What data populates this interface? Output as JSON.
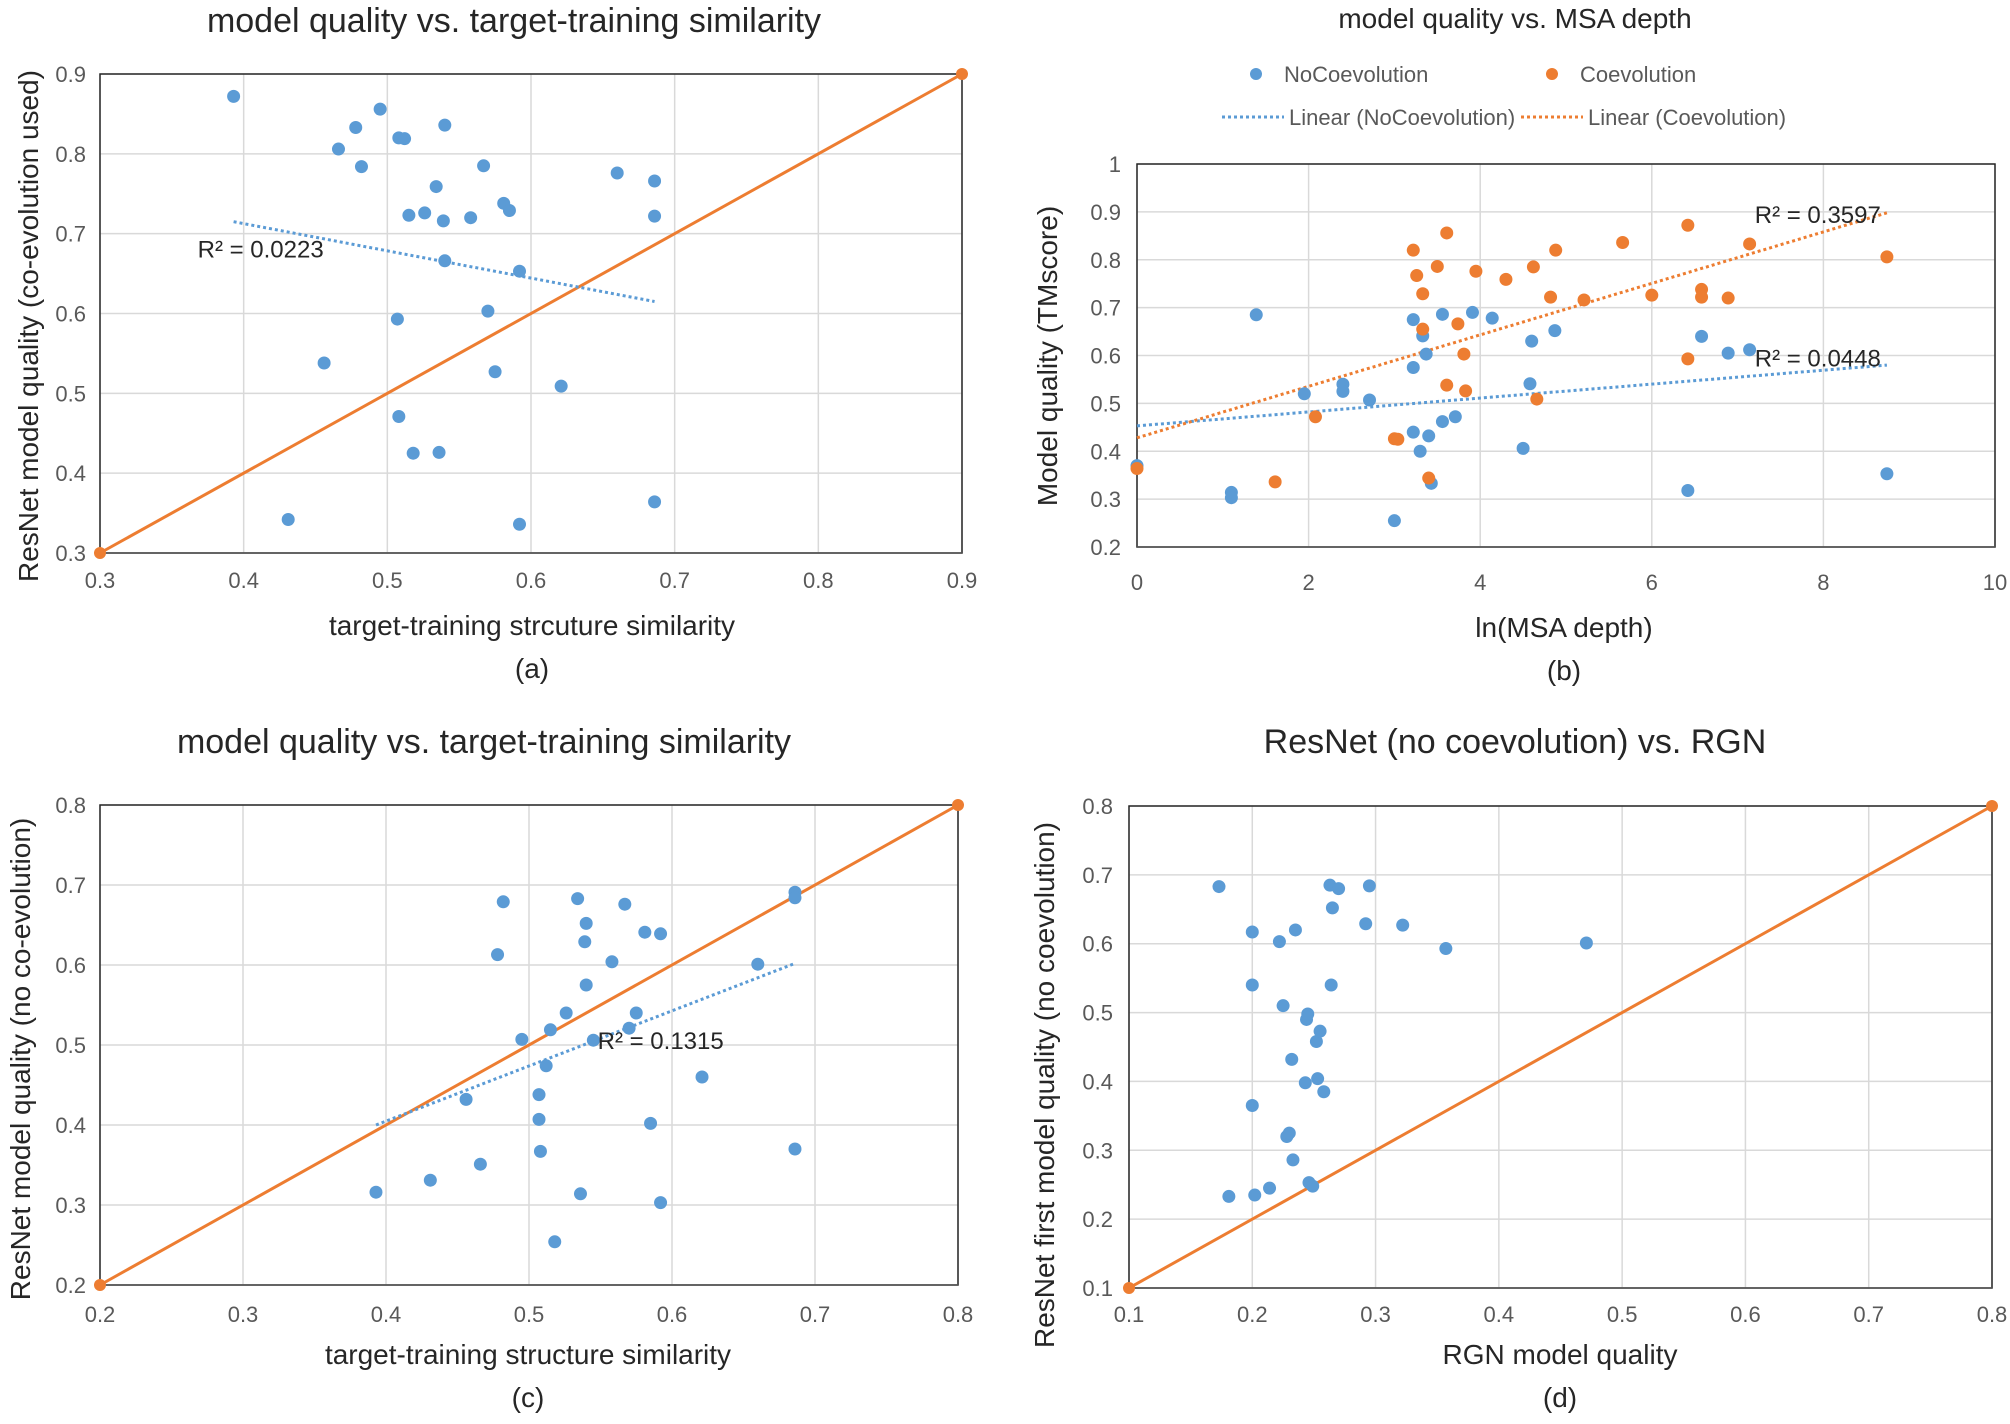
{
  "colors": {
    "blue": "#5b9bd5",
    "orange": "#ed7d31",
    "grid": "#d9d9d9",
    "text": "#262626",
    "tick": "#595959"
  },
  "chart_data": [
    {
      "id": "a",
      "type": "scatter",
      "title": "model quality vs. target-training similarity",
      "xlabel": "target-training strcuture similarity",
      "ylabel": "ResNet model quality (co-evolution used)",
      "panel_label": "(a)",
      "xlim": [
        0.3,
        0.9
      ],
      "ylim": [
        0.3,
        0.9
      ],
      "xticks": [
        "0.3",
        "0.4",
        "0.5",
        "0.6",
        "0.7",
        "0.8",
        "0.9"
      ],
      "yticks": [
        "0.3",
        "0.4",
        "0.5",
        "0.6",
        "0.7",
        "0.8",
        "0.9"
      ],
      "series": [
        {
          "name": "points",
          "color": "#5b9bd5",
          "points": [
            [
              0.393,
              0.872
            ],
            [
              0.466,
              0.806
            ],
            [
              0.478,
              0.833
            ],
            [
              0.482,
              0.784
            ],
            [
              0.495,
              0.856
            ],
            [
              0.508,
              0.82
            ],
            [
              0.512,
              0.819
            ],
            [
              0.54,
              0.836
            ],
            [
              0.515,
              0.723
            ],
            [
              0.526,
              0.726
            ],
            [
              0.534,
              0.759
            ],
            [
              0.539,
              0.716
            ],
            [
              0.558,
              0.72
            ],
            [
              0.567,
              0.785
            ],
            [
              0.581,
              0.738
            ],
            [
              0.585,
              0.729
            ],
            [
              0.66,
              0.776
            ],
            [
              0.686,
              0.766
            ],
            [
              0.686,
              0.722
            ],
            [
              0.54,
              0.666
            ],
            [
              0.592,
              0.653
            ],
            [
              0.507,
              0.593
            ],
            [
              0.57,
              0.603
            ],
            [
              0.456,
              0.538
            ],
            [
              0.575,
              0.527
            ],
            [
              0.621,
              0.509
            ],
            [
              0.508,
              0.471
            ],
            [
              0.518,
              0.425
            ],
            [
              0.536,
              0.426
            ],
            [
              0.431,
              0.342
            ],
            [
              0.592,
              0.336
            ],
            [
              0.686,
              0.364
            ]
          ]
        }
      ],
      "trendline": {
        "x": [
          0.393,
          0.686
        ],
        "y": [
          0.715,
          0.615
        ],
        "label": "R² = 0.0223",
        "color": "#5b9bd5"
      },
      "diagonal": {
        "x": [
          0.3,
          0.9
        ],
        "y": [
          0.3,
          0.9
        ],
        "color": "#ed7d31"
      }
    },
    {
      "id": "b",
      "type": "scatter",
      "title": "model quality vs. MSA depth",
      "xlabel": "ln(MSA depth)",
      "ylabel": "Model quality (TMscore)",
      "panel_label": "(b)",
      "xlim": [
        0,
        10
      ],
      "ylim": [
        0.2,
        1.0
      ],
      "xticks": [
        "0",
        "2",
        "4",
        "6",
        "8",
        "10"
      ],
      "yticks": [
        "0.2",
        "0.3",
        "0.4",
        "0.5",
        "0.6",
        "0.7",
        "0.8",
        "0.9",
        "1"
      ],
      "legend": {
        "position": "top",
        "entries": [
          "NoCoevolution",
          "Coevolution",
          "Linear (NoCoevolution)",
          "Linear (Coevolution)"
        ]
      },
      "series": [
        {
          "name": "NoCoevolution",
          "color": "#5b9bd5",
          "points": [
            [
              0,
              0.37
            ],
            [
              1.1,
              0.314
            ],
            [
              1.1,
              0.303
            ],
            [
              1.39,
              0.685
            ],
            [
              1.95,
              0.52
            ],
            [
              2.4,
              0.54
            ],
            [
              2.4,
              0.525
            ],
            [
              2.71,
              0.507
            ],
            [
              3.0,
              0.255
            ],
            [
              3.22,
              0.675
            ],
            [
              3.22,
              0.575
            ],
            [
              3.22,
              0.44
            ],
            [
              3.3,
              0.4
            ],
            [
              3.33,
              0.641
            ],
            [
              3.37,
              0.603
            ],
            [
              3.4,
              0.432
            ],
            [
              3.43,
              0.333
            ],
            [
              3.56,
              0.686
            ],
            [
              3.56,
              0.462
            ],
            [
              3.71,
              0.472
            ],
            [
              3.91,
              0.69
            ],
            [
              4.14,
              0.678
            ],
            [
              4.5,
              0.406
            ],
            [
              4.58,
              0.541
            ],
            [
              4.6,
              0.63
            ],
            [
              4.87,
              0.652
            ],
            [
              6.42,
              0.318
            ],
            [
              6.58,
              0.64
            ],
            [
              6.89,
              0.605
            ],
            [
              7.14,
              0.612
            ],
            [
              8.74,
              0.353
            ]
          ]
        },
        {
          "name": "Coevolution",
          "color": "#ed7d31",
          "points": [
            [
              0,
              0.364
            ],
            [
              1.61,
              0.336
            ],
            [
              2.08,
              0.472
            ],
            [
              3.0,
              0.426
            ],
            [
              3.04,
              0.425
            ],
            [
              3.22,
              0.82
            ],
            [
              3.26,
              0.767
            ],
            [
              3.33,
              0.729
            ],
            [
              3.33,
              0.655
            ],
            [
              3.4,
              0.344
            ],
            [
              3.5,
              0.786
            ],
            [
              3.61,
              0.856
            ],
            [
              3.61,
              0.538
            ],
            [
              3.74,
              0.666
            ],
            [
              3.81,
              0.603
            ],
            [
              3.83,
              0.526
            ],
            [
              3.95,
              0.776
            ],
            [
              4.3,
              0.759
            ],
            [
              4.62,
              0.785
            ],
            [
              4.66,
              0.509
            ],
            [
              4.82,
              0.722
            ],
            [
              4.88,
              0.82
            ],
            [
              5.21,
              0.716
            ],
            [
              5.66,
              0.836
            ],
            [
              6.0,
              0.726
            ],
            [
              6.42,
              0.872
            ],
            [
              6.42,
              0.593
            ],
            [
              6.58,
              0.738
            ],
            [
              6.58,
              0.722
            ],
            [
              6.89,
              0.72
            ],
            [
              7.14,
              0.833
            ],
            [
              8.74,
              0.806
            ]
          ]
        }
      ],
      "trendlines": [
        {
          "series": "NoCoevolution",
          "x": [
            0,
            8.74
          ],
          "y": [
            0.453,
            0.58
          ],
          "label": "R² = 0.0448",
          "color": "#5b9bd5"
        },
        {
          "series": "Coevolution",
          "x": [
            0,
            8.74
          ],
          "y": [
            0.428,
            0.898
          ],
          "label": "R² = 0.3597",
          "color": "#ed7d31"
        }
      ]
    },
    {
      "id": "c",
      "type": "scatter",
      "title": "model quality vs. target-training similarity",
      "xlabel": "target-training structure similarity",
      "ylabel": "ResNet model quality (no co-evolution)",
      "panel_label": "(c)",
      "xlim": [
        0.2,
        0.8
      ],
      "ylim": [
        0.2,
        0.8
      ],
      "xticks": [
        "0.2",
        "0.3",
        "0.4",
        "0.5",
        "0.6",
        "0.7",
        "0.8"
      ],
      "yticks": [
        "0.2",
        "0.3",
        "0.4",
        "0.5",
        "0.6",
        "0.7",
        "0.8"
      ],
      "series": [
        {
          "name": "points",
          "color": "#5b9bd5",
          "points": [
            [
              0.393,
              0.316
            ],
            [
              0.431,
              0.331
            ],
            [
              0.456,
              0.432
            ],
            [
              0.466,
              0.351
            ],
            [
              0.478,
              0.613
            ],
            [
              0.482,
              0.679
            ],
            [
              0.495,
              0.507
            ],
            [
              0.507,
              0.438
            ],
            [
              0.507,
              0.407
            ],
            [
              0.508,
              0.367
            ],
            [
              0.512,
              0.474
            ],
            [
              0.515,
              0.519
            ],
            [
              0.518,
              0.254
            ],
            [
              0.526,
              0.54
            ],
            [
              0.534,
              0.683
            ],
            [
              0.536,
              0.314
            ],
            [
              0.539,
              0.629
            ],
            [
              0.54,
              0.575
            ],
            [
              0.54,
              0.652
            ],
            [
              0.545,
              0.506
            ],
            [
              0.558,
              0.604
            ],
            [
              0.567,
              0.676
            ],
            [
              0.57,
              0.521
            ],
            [
              0.575,
              0.54
            ],
            [
              0.581,
              0.641
            ],
            [
              0.585,
              0.402
            ],
            [
              0.592,
              0.639
            ],
            [
              0.592,
              0.303
            ],
            [
              0.621,
              0.46
            ],
            [
              0.66,
              0.601
            ],
            [
              0.686,
              0.691
            ],
            [
              0.686,
              0.684
            ],
            [
              0.686,
              0.37
            ]
          ]
        }
      ],
      "trendline": {
        "x": [
          0.393,
          0.686
        ],
        "y": [
          0.4,
          0.602
        ],
        "label": "R² = 0.1315",
        "color": "#5b9bd5"
      },
      "diagonal": {
        "x": [
          0.2,
          0.8
        ],
        "y": [
          0.2,
          0.8
        ],
        "color": "#ed7d31"
      }
    },
    {
      "id": "d",
      "type": "scatter",
      "title": "ResNet (no coevolution) vs. RGN",
      "xlabel": "RGN model quality",
      "ylabel": "ResNet first model quality (no coevolution)",
      "panel_label": "(d)",
      "xlim": [
        0.1,
        0.8
      ],
      "ylim": [
        0.1,
        0.8
      ],
      "xticks": [
        "0.1",
        "0.2",
        "0.3",
        "0.4",
        "0.5",
        "0.6",
        "0.7",
        "0.8"
      ],
      "yticks": [
        "0.1",
        "0.2",
        "0.3",
        "0.4",
        "0.5",
        "0.6",
        "0.7",
        "0.8"
      ],
      "series": [
        {
          "name": "points",
          "color": "#5b9bd5",
          "points": [
            [
              0.173,
              0.683
            ],
            [
              0.181,
              0.233
            ],
            [
              0.2,
              0.617
            ],
            [
              0.2,
              0.54
            ],
            [
              0.2,
              0.365
            ],
            [
              0.202,
              0.235
            ],
            [
              0.214,
              0.245
            ],
            [
              0.222,
              0.603
            ],
            [
              0.225,
              0.51
            ],
            [
              0.228,
              0.32
            ],
            [
              0.23,
              0.325
            ],
            [
              0.232,
              0.432
            ],
            [
              0.233,
              0.286
            ],
            [
              0.235,
              0.62
            ],
            [
              0.243,
              0.398
            ],
            [
              0.244,
              0.49
            ],
            [
              0.245,
              0.498
            ],
            [
              0.246,
              0.253
            ],
            [
              0.249,
              0.248
            ],
            [
              0.252,
              0.458
            ],
            [
              0.253,
              0.404
            ],
            [
              0.255,
              0.473
            ],
            [
              0.258,
              0.385
            ],
            [
              0.263,
              0.685
            ],
            [
              0.264,
              0.54
            ],
            [
              0.265,
              0.652
            ],
            [
              0.27,
              0.68
            ],
            [
              0.292,
              0.629
            ],
            [
              0.295,
              0.684
            ],
            [
              0.322,
              0.627
            ],
            [
              0.357,
              0.593
            ],
            [
              0.471,
              0.601
            ]
          ]
        }
      ],
      "diagonal": {
        "x": [
          0.1,
          0.8
        ],
        "y": [
          0.1,
          0.8
        ],
        "color": "#ed7d31"
      }
    }
  ]
}
